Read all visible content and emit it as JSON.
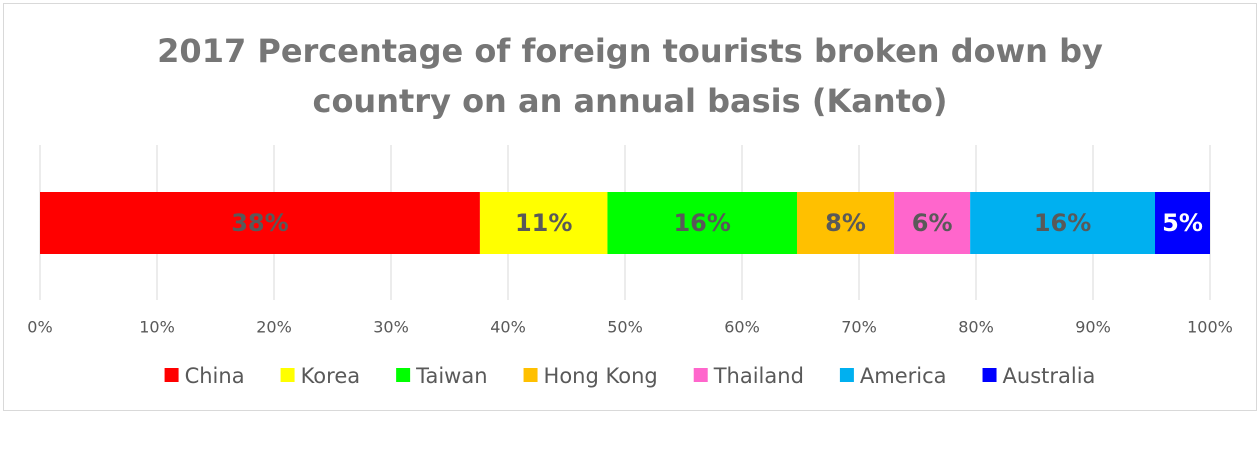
{
  "chart_data": {
    "type": "stacked-bar-horizontal",
    "title": "2017 Percentage of foreign tourists broken down by country on an annual basis (Kanto)",
    "series": [
      {
        "name": "China",
        "color": "#ff0000",
        "values": [
          37.6
        ],
        "value_labels": [
          "38%"
        ]
      },
      {
        "name": "Korea",
        "color": "#ffff00",
        "values": [
          10.9
        ],
        "value_labels": [
          "11%"
        ]
      },
      {
        "name": "Taiwan",
        "color": "#00ff00",
        "values": [
          16.2
        ],
        "value_labels": [
          "16%"
        ]
      },
      {
        "name": "Hong Kong",
        "color": "#ffc000",
        "values": [
          8.3
        ],
        "value_labels": [
          "8%"
        ]
      },
      {
        "name": "Thailand",
        "color": "#ff66cc",
        "values": [
          6.5
        ],
        "value_labels": [
          "6%"
        ]
      },
      {
        "name": "America",
        "color": "#00b0f0",
        "values": [
          15.8
        ],
        "value_labels": [
          "16%"
        ]
      },
      {
        "name": "Australia",
        "color": "#0000ff",
        "values": [
          4.7
        ],
        "value_labels": [
          "5%"
        ]
      }
    ],
    "xlim": [
      0,
      100
    ],
    "xticks": [
      {
        "value": 0,
        "label": "0%"
      },
      {
        "value": 10,
        "label": "10%"
      },
      {
        "value": 20,
        "label": "20%"
      },
      {
        "value": 30,
        "label": "30%"
      },
      {
        "value": 40,
        "label": "40%"
      },
      {
        "value": 50,
        "label": "50%"
      },
      {
        "value": 60,
        "label": "60%"
      },
      {
        "value": 70,
        "label": "70%"
      },
      {
        "value": 80,
        "label": "80%"
      },
      {
        "value": 90,
        "label": "90%"
      },
      {
        "value": 100,
        "label": "100%"
      }
    ],
    "grid": true,
    "legend": "bottom"
  }
}
